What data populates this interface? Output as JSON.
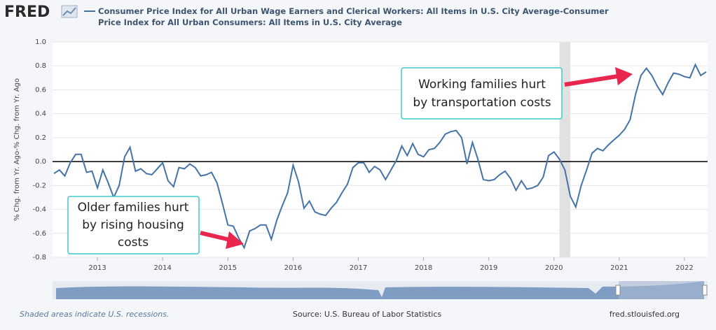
{
  "chart_data": {
    "type": "line",
    "logo": "FRED",
    "title": "Consumer Price Index for All Urban Wage Earners and Clerical Workers: All Items in U.S. City Average-Consumer Price Index for All Urban Consumers: All Items in U.S. City Average",
    "y_label": "% Chg. from Yr. Ago-% Chg. from Yr. Ago",
    "footer_left": "Shaded areas indicate U.S. recessions.",
    "footer_center": "Source: U.S. Bureau of Labor Statistics",
    "footer_right": "fred.stlouisfed.org",
    "xlim": [
      "2012-05",
      "2022-05"
    ],
    "xticks": [
      "2013",
      "2014",
      "2015",
      "2016",
      "2017",
      "2018",
      "2019",
      "2020",
      "2021",
      "2022"
    ],
    "ylim": [
      -0.8,
      1.0
    ],
    "yticks": [
      -0.8,
      -0.6,
      -0.4,
      -0.2,
      {
        "value": 0,
        "label": "0.0"
      },
      0.2,
      0.4,
      0.6,
      0.8,
      {
        "value": 1.0,
        "label": "1.0"
      }
    ],
    "grid": true,
    "recessions": [
      {
        "start": "2020-02",
        "end": "2020-04"
      }
    ],
    "annotations": [
      {
        "lines": [
          "Working families hurt",
          "by transportation costs"
        ]
      },
      {
        "lines": [
          "Older families hurt",
          "by rising housing",
          "costs"
        ]
      }
    ],
    "x": [
      "2012-05",
      "2012-06",
      "2012-07",
      "2012-08",
      "2012-09",
      "2012-10",
      "2012-11",
      "2012-12",
      "2013-01",
      "2013-02",
      "2013-03",
      "2013-04",
      "2013-05",
      "2013-06",
      "2013-07",
      "2013-08",
      "2013-09",
      "2013-10",
      "2013-11",
      "2013-12",
      "2014-01",
      "2014-02",
      "2014-03",
      "2014-04",
      "2014-05",
      "2014-06",
      "2014-07",
      "2014-08",
      "2014-09",
      "2014-10",
      "2014-11",
      "2014-12",
      "2015-01",
      "2015-02",
      "2015-03",
      "2015-04",
      "2015-05",
      "2015-06",
      "2015-07",
      "2015-08",
      "2015-09",
      "2015-10",
      "2015-11",
      "2015-12",
      "2016-01",
      "2016-02",
      "2016-03",
      "2016-04",
      "2016-05",
      "2016-06",
      "2016-07",
      "2016-08",
      "2016-09",
      "2016-10",
      "2016-11",
      "2016-12",
      "2017-01",
      "2017-02",
      "2017-03",
      "2017-04",
      "2017-05",
      "2017-06",
      "2017-07",
      "2017-08",
      "2017-09",
      "2017-10",
      "2017-11",
      "2017-12",
      "2018-01",
      "2018-02",
      "2018-03",
      "2018-04",
      "2018-05",
      "2018-06",
      "2018-07",
      "2018-08",
      "2018-09",
      "2018-10",
      "2018-11",
      "2018-12",
      "2019-01",
      "2019-02",
      "2019-03",
      "2019-04",
      "2019-05",
      "2019-06",
      "2019-07",
      "2019-08",
      "2019-09",
      "2019-10",
      "2019-11",
      "2019-12",
      "2020-01",
      "2020-02",
      "2020-03",
      "2020-04",
      "2020-05",
      "2020-06",
      "2020-07",
      "2020-08",
      "2020-09",
      "2020-10",
      "2020-11",
      "2020-12",
      "2021-01",
      "2021-02",
      "2021-03",
      "2021-04",
      "2021-05",
      "2021-06",
      "2021-07",
      "2021-08",
      "2021-09",
      "2021-10",
      "2021-11",
      "2021-12",
      "2022-01",
      "2022-02",
      "2022-03",
      "2022-04",
      "2022-05"
    ],
    "series": [
      {
        "name": "Consumer Price Index for All Urban Wage Earners and Clerical Workers: All Items in U.S. City Average-Consumer Price Index for All Urban Consumers: All Items in U.S. City Average",
        "color": "#4572a7",
        "values": [
          -0.1,
          -0.07,
          -0.12,
          -0.01,
          0.06,
          0.06,
          -0.09,
          -0.08,
          -0.22,
          -0.07,
          -0.18,
          -0.3,
          -0.2,
          0.04,
          0.12,
          -0.08,
          -0.06,
          -0.1,
          -0.11,
          -0.06,
          -0.01,
          -0.16,
          -0.21,
          -0.05,
          -0.06,
          -0.02,
          -0.05,
          -0.12,
          -0.11,
          -0.09,
          -0.18,
          -0.35,
          -0.53,
          -0.54,
          -0.64,
          -0.72,
          -0.58,
          -0.56,
          -0.53,
          -0.53,
          -0.65,
          -0.49,
          -0.37,
          -0.26,
          -0.03,
          -0.17,
          -0.39,
          -0.33,
          -0.42,
          -0.44,
          -0.45,
          -0.39,
          -0.34,
          -0.26,
          -0.19,
          -0.05,
          -0.01,
          -0.01,
          -0.09,
          -0.04,
          -0.07,
          -0.15,
          -0.07,
          0.01,
          0.13,
          0.05,
          0.15,
          0.06,
          0.04,
          0.1,
          0.11,
          0.16,
          0.23,
          0.25,
          0.26,
          0.2,
          -0.02,
          0.16,
          0.02,
          -0.15,
          -0.16,
          -0.15,
          -0.11,
          -0.08,
          -0.14,
          -0.24,
          -0.16,
          -0.23,
          -0.22,
          -0.2,
          -0.13,
          0.05,
          0.08,
          0.02,
          -0.07,
          -0.29,
          -0.38,
          -0.2,
          -0.07,
          0.07,
          0.11,
          0.09,
          0.14,
          0.18,
          0.22,
          0.27,
          0.35,
          0.56,
          0.72,
          0.78,
          0.72,
          0.63,
          0.56,
          0.66,
          0.74,
          0.73,
          0.71,
          0.7,
          0.81,
          0.72,
          0.75
        ]
      }
    ]
  }
}
